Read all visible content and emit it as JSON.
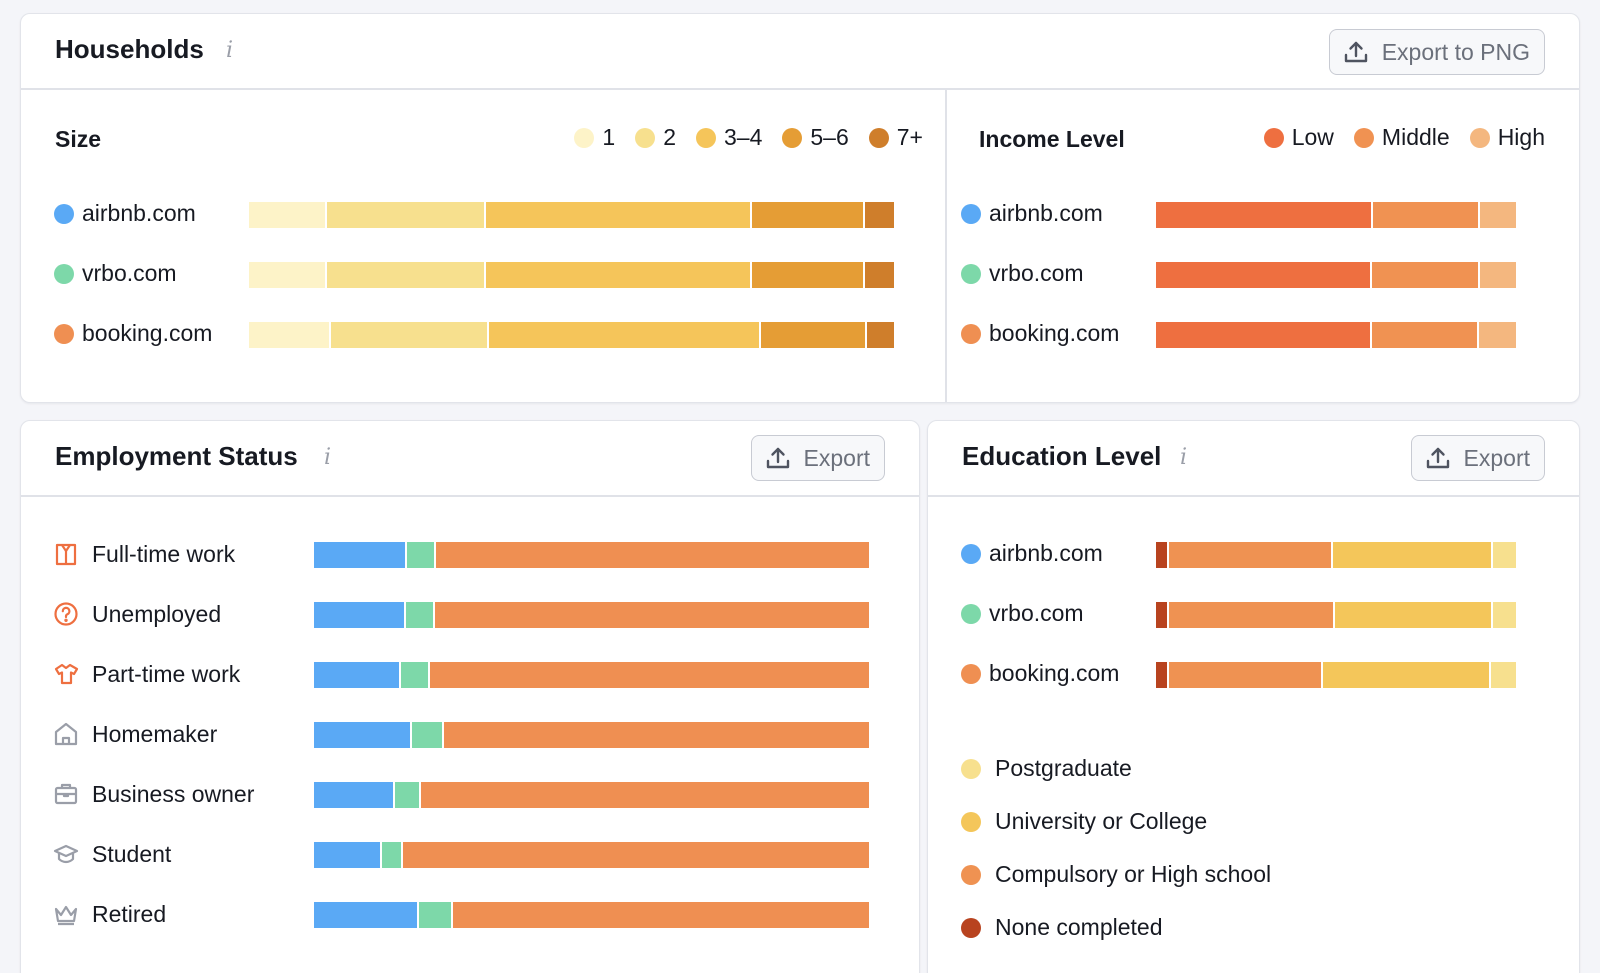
{
  "households": {
    "title": "Households",
    "export_label": "Export to PNG"
  },
  "employment": {
    "title": "Employment Status",
    "export_label": "Export"
  },
  "education": {
    "title": "Education Level",
    "export_label": "Export"
  },
  "colors": {
    "airbnb": "#5aa9f5",
    "vrbo": "#7dd8a9",
    "booking": "#ef8f52"
  },
  "chart_data": [
    {
      "type": "bar",
      "stacked": true,
      "orientation": "horizontal",
      "normalized": true,
      "title": "Size",
      "categories": [
        "airbnb.com",
        "vrbo.com",
        "booking.com"
      ],
      "category_colors": [
        "#5aa9f5",
        "#7dd8a9",
        "#ef8f52"
      ],
      "series": [
        {
          "name": "1",
          "color": "#fdf3c8",
          "values": [
            12,
            12,
            12.5
          ]
        },
        {
          "name": "2",
          "color": "#f7e08e",
          "values": [
            24.5,
            24.5,
            24.5
          ]
        },
        {
          "name": "3–4",
          "color": "#f5c55a",
          "values": [
            41.5,
            41.5,
            42.5
          ]
        },
        {
          "name": "5–6",
          "color": "#e59d35",
          "values": [
            17.5,
            17.5,
            16.3
          ]
        },
        {
          "name": "7+",
          "color": "#cf7e2b",
          "values": [
            4.5,
            4.5,
            4.2
          ]
        }
      ],
      "legend_position": "top-right"
    },
    {
      "type": "bar",
      "stacked": true,
      "orientation": "horizontal",
      "normalized": true,
      "title": "Income Level",
      "categories": [
        "airbnb.com",
        "vrbo.com",
        "booking.com"
      ],
      "category_colors": [
        "#5aa9f5",
        "#7dd8a9",
        "#ef8f52"
      ],
      "series": [
        {
          "name": "Low",
          "color": "#ee6f40",
          "values": [
            60.5,
            60,
            60
          ]
        },
        {
          "name": "Middle",
          "color": "#f09252",
          "values": [
            29.5,
            30,
            29.5
          ]
        },
        {
          "name": "High",
          "color": "#f4b77f",
          "values": [
            10,
            10,
            10.5
          ]
        }
      ],
      "legend_position": "top-right"
    },
    {
      "type": "bar",
      "stacked": true,
      "orientation": "horizontal",
      "normalized": true,
      "title": "Employment Status",
      "categories": [
        "Full-time work",
        "Unemployed",
        "Part-time work",
        "Homemaker",
        "Business owner",
        "Student",
        "Retired"
      ],
      "category_icons": [
        "shirt-icon",
        "question-icon",
        "tshirt-icon",
        "house-icon",
        "briefcase-icon",
        "graduation-cap-icon",
        "crown-icon"
      ],
      "series": [
        {
          "name": "airbnb.com",
          "color": "#5aa9f5",
          "values": [
            16.5,
            16.3,
            15.5,
            17.5,
            14.3,
            12,
            18.7
          ]
        },
        {
          "name": "vrbo.com",
          "color": "#7dd8a9",
          "values": [
            5,
            5,
            4.8,
            5.4,
            4.4,
            3.5,
            5.8
          ]
        },
        {
          "name": "booking.com",
          "color": "#ef8f52",
          "values": [
            78.5,
            78.7,
            79.7,
            77.1,
            81.3,
            84.5,
            75.5
          ]
        }
      ]
    },
    {
      "type": "bar",
      "stacked": true,
      "orientation": "horizontal",
      "normalized": true,
      "title": "Education Level",
      "categories": [
        "airbnb.com",
        "vrbo.com",
        "booking.com"
      ],
      "category_colors": [
        "#5aa9f5",
        "#7dd8a9",
        "#ef8f52"
      ],
      "series": [
        {
          "name": "None completed",
          "color": "#b8431f",
          "values": [
            3,
            3,
            3
          ]
        },
        {
          "name": "Compulsory or High school",
          "color": "#ef9252",
          "values": [
            46,
            46.5,
            43
          ]
        },
        {
          "name": "University or College",
          "color": "#f4c65a",
          "values": [
            44.5,
            44,
            47
          ]
        },
        {
          "name": "Postgraduate",
          "color": "#f7e08e",
          "values": [
            6.5,
            6.5,
            7
          ]
        }
      ],
      "legend": [
        "Postgraduate",
        "University or College",
        "Compulsory or High school",
        "None completed"
      ],
      "legend_position": "bottom"
    }
  ]
}
